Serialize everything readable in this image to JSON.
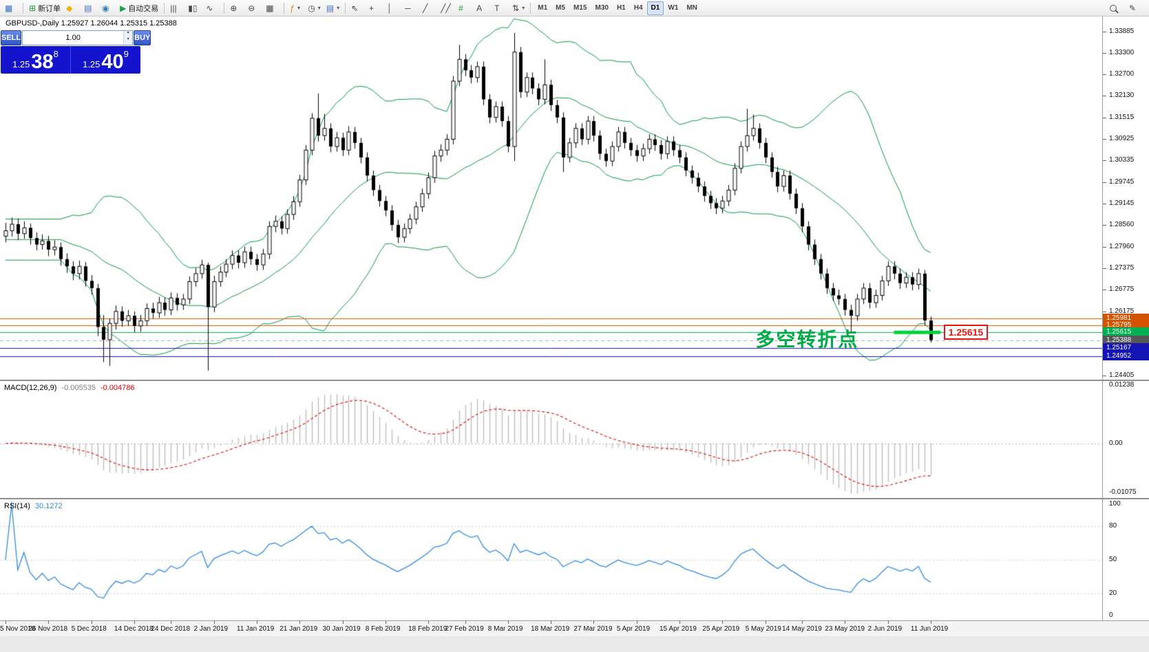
{
  "toolbar": {
    "new_order_label": "新订单",
    "autotrading_label": "自动交易",
    "groups": [
      {
        "items": [
          {
            "name": "new-chart",
            "glyph": "▦",
            "color": "#3b6fc4"
          }
        ]
      },
      {
        "items": [
          {
            "name": "new-order",
            "glyph": "⊞",
            "color": "#1f9d3a",
            "label": "新订单"
          },
          {
            "name": "metaeditor",
            "glyph": "◆",
            "color": "#f0b400"
          },
          {
            "name": "market-watch",
            "glyph": "▤",
            "color": "#3b6fc4"
          },
          {
            "name": "navigator",
            "glyph": "◉",
            "color": "#2a7fc0"
          },
          {
            "name": "autotrading",
            "glyph": "▶",
            "color": "#18a54a",
            "label": "自动交易"
          }
        ]
      },
      {
        "items": [
          {
            "name": "bar-chart",
            "glyph": "|||"
          },
          {
            "name": "candlestick-chart",
            "glyph": "▮▯"
          },
          {
            "name": "line-chart",
            "glyph": "∿"
          }
        ]
      },
      {
        "items": [
          {
            "name": "zoom-in",
            "glyph": "⊕"
          },
          {
            "name": "zoom-out",
            "glyph": "⊖"
          },
          {
            "name": "tile-windows",
            "glyph": "▦"
          }
        ]
      },
      {
        "items": [
          {
            "name": "indicators",
            "glyph": "ƒ",
            "color": "#c09010",
            "dropdown": true
          },
          {
            "name": "periods",
            "glyph": "◷",
            "dropdown": true
          },
          {
            "name": "templates",
            "glyph": "▤",
            "color": "#3b6fc4",
            "dropdown": true
          }
        ]
      },
      {
        "items": [
          {
            "name": "cursor",
            "glyph": "⇖"
          },
          {
            "name": "crosshair",
            "glyph": "+"
          },
          {
            "name": "vertical-line",
            "glyph": "│"
          },
          {
            "name": "horizontal-line",
            "glyph": "─"
          },
          {
            "name": "trendline",
            "glyph": "╱"
          },
          {
            "name": "equidistant-channel",
            "glyph": "╱╱"
          },
          {
            "name": "fibonacci",
            "glyph": "#",
            "color": "#1f9d3a"
          },
          {
            "name": "text",
            "glyph": "A"
          },
          {
            "name": "text-label",
            "glyph": "T"
          },
          {
            "name": "arrows",
            "glyph": "⇅",
            "dropdown": true
          }
        ]
      }
    ],
    "timeframes": [
      "M1",
      "M5",
      "M15",
      "M30",
      "H1",
      "H4",
      "D1",
      "W1",
      "MN"
    ],
    "active_timeframe": "D1"
  },
  "chart": {
    "header": "GBPUSD-,Daily 1.25927 1.26044 1.25315 1.25388"
  },
  "trade_panel": {
    "sell_label": "SELL",
    "buy_label": "BUY",
    "volume": "1.00",
    "sell_price": {
      "prefix": "1.25",
      "big": "38",
      "sup": "8"
    },
    "buy_price": {
      "prefix": "1.25",
      "big": "40",
      "sup": "9"
    },
    "button_color": "#3a63d6",
    "panel_color": "#1414cf"
  },
  "chart_data": {
    "type": "candlestick",
    "symbol": "GBPUSD-",
    "timeframe": "Daily",
    "ohlc_current": {
      "open": "1.25927",
      "high": "1.26044",
      "low": "1.25315",
      "close": "1.25388"
    },
    "price_axis": {
      "min": 1.243,
      "max": 1.343,
      "ticks": [
        "1.33885",
        "1.33300",
        "1.32700",
        "1.32130",
        "1.31515",
        "1.30925",
        "1.30335",
        "1.29745",
        "1.29145",
        "1.28560",
        "1.27960",
        "1.27375",
        "1.26775",
        "1.26175",
        "1.24405"
      ]
    },
    "candles": [
      [
        1.2825,
        1.2862,
        1.2808,
        1.284
      ],
      [
        1.284,
        1.2876,
        1.2824,
        1.2858
      ],
      [
        1.2858,
        1.2874,
        1.2814,
        1.2832
      ],
      [
        1.2832,
        1.2866,
        1.2818,
        1.2848
      ],
      [
        1.2848,
        1.286,
        1.2802,
        1.282
      ],
      [
        1.282,
        1.2836,
        1.2786,
        1.2802
      ],
      [
        1.2802,
        1.283,
        1.2788,
        1.2812
      ],
      [
        1.2812,
        1.2826,
        1.277,
        1.2788
      ],
      [
        1.2788,
        1.2814,
        1.2772,
        1.2795
      ],
      [
        1.2795,
        1.2808,
        1.2744,
        1.2762
      ],
      [
        1.2762,
        1.2778,
        1.2724,
        1.2742
      ],
      [
        1.2742,
        1.2756,
        1.2704,
        1.2722
      ],
      [
        1.2722,
        1.2758,
        1.2706,
        1.2742
      ],
      [
        1.2742,
        1.2754,
        1.2686,
        1.2702
      ],
      [
        1.2702,
        1.2718,
        1.2664,
        1.2682
      ],
      [
        1.2682,
        1.2694,
        1.255,
        1.2575
      ],
      [
        1.2575,
        1.2608,
        1.2478,
        1.254
      ],
      [
        1.254,
        1.2598,
        1.2468,
        1.2585
      ],
      [
        1.2585,
        1.2634,
        1.2568,
        1.2618
      ],
      [
        1.2618,
        1.2632,
        1.2576,
        1.2592
      ],
      [
        1.2592,
        1.2622,
        1.2578,
        1.2606
      ],
      [
        1.2606,
        1.2618,
        1.256,
        1.2578
      ],
      [
        1.2578,
        1.2608,
        1.2562,
        1.2592
      ],
      [
        1.2592,
        1.264,
        1.2578,
        1.2626
      ],
      [
        1.2626,
        1.2642,
        1.2598,
        1.2614
      ],
      [
        1.2614,
        1.2658,
        1.26,
        1.2642
      ],
      [
        1.2642,
        1.2656,
        1.2606,
        1.2622
      ],
      [
        1.2622,
        1.267,
        1.2608,
        1.2655
      ],
      [
        1.2655,
        1.2668,
        1.262,
        1.2636
      ],
      [
        1.2636,
        1.2666,
        1.2622,
        1.2652
      ],
      [
        1.2652,
        1.2714,
        1.2638,
        1.27
      ],
      [
        1.27,
        1.2738,
        1.2686,
        1.2722
      ],
      [
        1.2722,
        1.276,
        1.2708,
        1.2746
      ],
      [
        1.2746,
        1.2752,
        1.2455,
        1.263
      ],
      [
        1.263,
        1.2716,
        1.2616,
        1.27
      ],
      [
        1.27,
        1.2742,
        1.2686,
        1.2726
      ],
      [
        1.2726,
        1.2762,
        1.2712,
        1.2748
      ],
      [
        1.2748,
        1.2786,
        1.2734,
        1.2772
      ],
      [
        1.2772,
        1.2786,
        1.2736,
        1.2752
      ],
      [
        1.2752,
        1.2796,
        1.2738,
        1.2782
      ],
      [
        1.2782,
        1.2796,
        1.2746,
        1.2762
      ],
      [
        1.2762,
        1.2776,
        1.273,
        1.2746
      ],
      [
        1.2746,
        1.279,
        1.2732,
        1.2776
      ],
      [
        1.2776,
        1.2866,
        1.2762,
        1.2852
      ],
      [
        1.2852,
        1.2882,
        1.2836,
        1.2866
      ],
      [
        1.2866,
        1.288,
        1.283,
        1.2846
      ],
      [
        1.2846,
        1.2899,
        1.2832,
        1.2885
      ],
      [
        1.2885,
        1.2936,
        1.287,
        1.292
      ],
      [
        1.292,
        1.2994,
        1.2906,
        1.298
      ],
      [
        1.298,
        1.3076,
        1.2966,
        1.3062
      ],
      [
        1.3062,
        1.3164,
        1.3048,
        1.315
      ],
      [
        1.315,
        1.3218,
        1.3086,
        1.3102
      ],
      [
        1.3102,
        1.3162,
        1.3088,
        1.3122
      ],
      [
        1.3122,
        1.3136,
        1.3056,
        1.3072
      ],
      [
        1.3072,
        1.3112,
        1.3058,
        1.3096
      ],
      [
        1.3096,
        1.311,
        1.3046,
        1.3062
      ],
      [
        1.3062,
        1.3128,
        1.3048,
        1.3112
      ],
      [
        1.3112,
        1.3126,
        1.3066,
        1.3082
      ],
      [
        1.3082,
        1.3096,
        1.3026,
        1.3042
      ],
      [
        1.3042,
        1.3056,
        1.2976,
        1.2992
      ],
      [
        1.2992,
        1.3006,
        1.2936,
        1.2952
      ],
      [
        1.2952,
        1.2966,
        1.2906,
        1.2922
      ],
      [
        1.2922,
        1.2936,
        1.288,
        1.2896
      ],
      [
        1.2896,
        1.291,
        1.284,
        1.2856
      ],
      [
        1.2856,
        1.287,
        1.2806,
        1.2822
      ],
      [
        1.2822,
        1.286,
        1.2808,
        1.2846
      ],
      [
        1.2846,
        1.2886,
        1.2832,
        1.2872
      ],
      [
        1.2872,
        1.292,
        1.2858,
        1.2906
      ],
      [
        1.2906,
        1.2956,
        1.2892,
        1.2942
      ],
      [
        1.2942,
        1.3,
        1.2928,
        1.2986
      ],
      [
        1.2986,
        1.306,
        1.2972,
        1.3046
      ],
      [
        1.3046,
        1.3078,
        1.303,
        1.3062
      ],
      [
        1.3062,
        1.3106,
        1.3048,
        1.3092
      ],
      [
        1.3092,
        1.3266,
        1.3078,
        1.3252
      ],
      [
        1.3252,
        1.3352,
        1.3238,
        1.3312
      ],
      [
        1.3312,
        1.3326,
        1.3266,
        1.3282
      ],
      [
        1.3282,
        1.3296,
        1.3246,
        1.3262
      ],
      [
        1.3262,
        1.3306,
        1.3248,
        1.3292
      ],
      [
        1.3292,
        1.3306,
        1.3186,
        1.3202
      ],
      [
        1.3202,
        1.3216,
        1.3136,
        1.3152
      ],
      [
        1.3152,
        1.3196,
        1.3138,
        1.3182
      ],
      [
        1.3182,
        1.3196,
        1.3126,
        1.3142
      ],
      [
        1.3142,
        1.3156,
        1.3056,
        1.3072
      ],
      [
        1.3072,
        1.3385,
        1.3032,
        1.3332
      ],
      [
        1.3332,
        1.3346,
        1.3206,
        1.3222
      ],
      [
        1.3222,
        1.3276,
        1.3208,
        1.3262
      ],
      [
        1.3262,
        1.3276,
        1.3216,
        1.3232
      ],
      [
        1.3232,
        1.3246,
        1.3186,
        1.3202
      ],
      [
        1.3202,
        1.3312,
        1.3188,
        1.3242
      ],
      [
        1.3242,
        1.3256,
        1.317,
        1.3186
      ],
      [
        1.3186,
        1.32,
        1.3136,
        1.3152
      ],
      [
        1.3152,
        1.3166,
        1.3002,
        1.3042
      ],
      [
        1.3042,
        1.3096,
        1.3028,
        1.3082
      ],
      [
        1.3082,
        1.3136,
        1.3068,
        1.3122
      ],
      [
        1.3122,
        1.3136,
        1.3076,
        1.3092
      ],
      [
        1.3092,
        1.3156,
        1.3078,
        1.3142
      ],
      [
        1.3142,
        1.3156,
        1.3086,
        1.3102
      ],
      [
        1.3102,
        1.3116,
        1.3036,
        1.3052
      ],
      [
        1.3052,
        1.3066,
        1.3016,
        1.3032
      ],
      [
        1.3032,
        1.3086,
        1.3018,
        1.3072
      ],
      [
        1.3072,
        1.3126,
        1.3058,
        1.3112
      ],
      [
        1.3112,
        1.3126,
        1.3066,
        1.3082
      ],
      [
        1.3082,
        1.3096,
        1.3046,
        1.3062
      ],
      [
        1.3062,
        1.3076,
        1.303,
        1.3046
      ],
      [
        1.3046,
        1.308,
        1.3032,
        1.3066
      ],
      [
        1.3066,
        1.3106,
        1.3052,
        1.3092
      ],
      [
        1.3092,
        1.3106,
        1.306,
        1.3076
      ],
      [
        1.3076,
        1.309,
        1.3036,
        1.3052
      ],
      [
        1.3052,
        1.31,
        1.3038,
        1.3086
      ],
      [
        1.3086,
        1.31,
        1.3046,
        1.3062
      ],
      [
        1.3062,
        1.3076,
        1.3026,
        1.3042
      ],
      [
        1.3042,
        1.3056,
        1.299,
        1.3006
      ],
      [
        1.3006,
        1.302,
        1.297,
        1.2986
      ],
      [
        1.2986,
        1.3,
        1.2946,
        1.2962
      ],
      [
        1.2962,
        1.2976,
        1.292,
        1.2936
      ],
      [
        1.2936,
        1.295,
        1.29,
        1.2916
      ],
      [
        1.2916,
        1.293,
        1.2886,
        1.2902
      ],
      [
        1.2902,
        1.2936,
        1.2888,
        1.2922
      ],
      [
        1.2922,
        1.2966,
        1.2908,
        1.2952
      ],
      [
        1.2952,
        1.3026,
        1.2938,
        1.3012
      ],
      [
        1.3012,
        1.3086,
        1.2998,
        1.3072
      ],
      [
        1.3072,
        1.3176,
        1.3058,
        1.3102
      ],
      [
        1.3102,
        1.316,
        1.3088,
        1.3122
      ],
      [
        1.3122,
        1.3136,
        1.3066,
        1.3082
      ],
      [
        1.3082,
        1.3096,
        1.3026,
        1.3042
      ],
      [
        1.3042,
        1.3056,
        1.2986,
        1.3002
      ],
      [
        1.3002,
        1.3016,
        1.2946,
        1.2962
      ],
      [
        1.2962,
        1.3006,
        1.2948,
        1.2992
      ],
      [
        1.2992,
        1.3006,
        1.2926,
        1.2942
      ],
      [
        1.2942,
        1.2956,
        1.2886,
        1.2902
      ],
      [
        1.2902,
        1.2916,
        1.2836,
        1.2852
      ],
      [
        1.2852,
        1.2866,
        1.2786,
        1.2802
      ],
      [
        1.2802,
        1.2816,
        1.2746,
        1.2762
      ],
      [
        1.2762,
        1.2776,
        1.2706,
        1.2722
      ],
      [
        1.2722,
        1.2736,
        1.2666,
        1.2682
      ],
      [
        1.2682,
        1.2696,
        1.2646,
        1.2662
      ],
      [
        1.2662,
        1.2678,
        1.2636,
        1.2652
      ],
      [
        1.2652,
        1.2666,
        1.2606,
        1.2622
      ],
      [
        1.2622,
        1.2636,
        1.256,
        1.2606
      ],
      [
        1.2606,
        1.2666,
        1.2592,
        1.2652
      ],
      [
        1.2652,
        1.2696,
        1.2638,
        1.2682
      ],
      [
        1.2682,
        1.2696,
        1.2626,
        1.2642
      ],
      [
        1.2642,
        1.2678,
        1.2628,
        1.2662
      ],
      [
        1.2662,
        1.2716,
        1.2648,
        1.2702
      ],
      [
        1.2702,
        1.2756,
        1.2688,
        1.2742
      ],
      [
        1.2742,
        1.2756,
        1.2706,
        1.2722
      ],
      [
        1.2722,
        1.2736,
        1.268,
        1.2696
      ],
      [
        1.2696,
        1.2726,
        1.2682,
        1.2712
      ],
      [
        1.2712,
        1.2726,
        1.2676,
        1.2692
      ],
      [
        1.2692,
        1.2736,
        1.2678,
        1.2722
      ],
      [
        1.2722,
        1.2732,
        1.258,
        1.2593
      ],
      [
        1.2593,
        1.2604,
        1.2532,
        1.2539
      ]
    ],
    "bollinger": {
      "period": 20,
      "deviation": 2,
      "color": "#009944"
    },
    "hlines": [
      {
        "price": 1.25981,
        "color": "#d35400",
        "width": 1,
        "style": "solid"
      },
      {
        "price": 1.25795,
        "color": "#d35400",
        "width": 1,
        "style": "solid"
      },
      {
        "price": 1.25615,
        "color": "#00a650",
        "width": 1,
        "style": "solid"
      },
      {
        "price": 1.25388,
        "color": "#a8a8a8",
        "width": 1,
        "style": "dash"
      },
      {
        "price": 1.25167,
        "color": "#1414b4",
        "width": 1,
        "style": "solid"
      },
      {
        "price": 1.24952,
        "color": "#1414b4",
        "width": 1,
        "style": "solid"
      }
    ],
    "price_tags": [
      {
        "text": "1.25981",
        "price": 1.25981,
        "bg": "#d35400"
      },
      {
        "text": "1.25795",
        "price": 1.25795,
        "bg": "#d35400"
      },
      {
        "text": "1.25615",
        "price": 1.25615,
        "bg": "#00b050"
      },
      {
        "text": "1.25388",
        "price": 1.25388,
        "bg": "#565656"
      },
      {
        "text": "1.25167",
        "price": 1.25167,
        "bg": "#1414b4"
      },
      {
        "text": "1.24952",
        "price": 1.24952,
        "bg": "#1414b4"
      }
    ],
    "trend_segment": {
      "x1_index": 145,
      "x2_index": 152.6,
      "price": 1.256,
      "width": 5,
      "color": "#00d23c"
    },
    "annotation": {
      "text": "多空转折点",
      "color": "#00aa44",
      "x_index": 122.4,
      "price": 1.257
    },
    "price_flag": {
      "text": "1.25615",
      "color": "#e81414",
      "x_index": 153.1,
      "price": 1.25615
    },
    "macd": {
      "label": "MACD(12,26,9)",
      "value_main": "-0.005535",
      "value_signal": "-0.004786",
      "params": {
        "fast": 12,
        "slow": 26,
        "signal": 9
      },
      "scale_labels": [
        "0.01238",
        "0.00",
        "-0.01075"
      ],
      "scale_max": 0.01238,
      "scale_min": -0.01075,
      "histogram_color": "#bdbdbd",
      "signal_color": "#e60000"
    },
    "rsi": {
      "label": "RSI(14)",
      "value": "30.1272",
      "period": 14,
      "levels": [
        80,
        50,
        20
      ],
      "scale_labels": [
        "100",
        "80",
        "50",
        "20",
        "0"
      ],
      "line_color": "#2e8be6"
    },
    "date_labels": [
      "5 Nov 2018",
      "26 Nov 2018",
      "5 Dec 2018",
      "14 Dec 2018",
      "24 Dec 2018",
      "2 Jan 2019",
      "11 Jan 2019",
      "21 Jan 2019",
      "30 Jan 2019",
      "8 Feb 2019",
      "18 Feb 2019",
      "27 Feb 2019",
      "8 Mar 2019",
      "18 Mar 2019",
      "27 Mar 2019",
      "5 Apr 2019",
      "15 Apr 2019",
      "25 Apr 2019",
      "5 May 2019",
      "14 May 2019",
      "23 May 2019",
      "2 Jun 2019",
      "11 Jun 2019"
    ],
    "date_label_indices": [
      0,
      7,
      14,
      21,
      27,
      34,
      41,
      48,
      55,
      62,
      69,
      75,
      82,
      89,
      96,
      103,
      110,
      117,
      124,
      130,
      137,
      144,
      151
    ]
  }
}
